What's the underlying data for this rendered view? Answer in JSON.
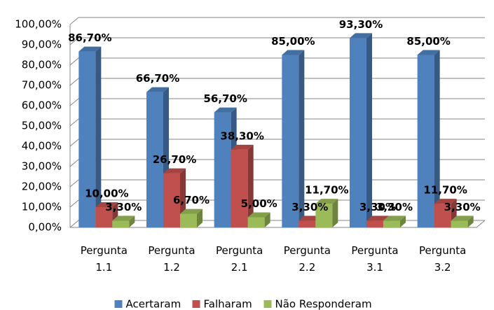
{
  "chart_data": {
    "type": "bar3d",
    "categories": [
      "Pergunta 1.1",
      "Pergunta 1.2",
      "Pergunta 2.1",
      "Pergunta 2.2",
      "Pergunta 3.1",
      "Pergunta 3.2"
    ],
    "series": [
      {
        "name": "Acertaram",
        "color": "#4f81bd",
        "values": [
          86.7,
          66.7,
          56.7,
          85,
          93.3,
          85
        ],
        "value_labels": [
          "86,70%",
          "66,70%",
          "56,70%",
          "85,00%",
          "93,30%",
          "85,00%"
        ]
      },
      {
        "name": "Falharam",
        "color": "#c0504d",
        "values": [
          10,
          26.7,
          38.3,
          3.3,
          3.3,
          11.7
        ],
        "value_labels": [
          "10,00%",
          "26,70%",
          "38,30%",
          "3,30%",
          "3,30%",
          "11,70%"
        ]
      },
      {
        "name": "Não Responderam",
        "color": "#9bbb59",
        "values": [
          3.3,
          6.7,
          5,
          11.7,
          3.3,
          3.3
        ],
        "value_labels": [
          "3,30%",
          "6,70%",
          "5,00%",
          "11,70%",
          "3,30%",
          "3,30%"
        ]
      }
    ],
    "ylim": [
      0,
      100
    ],
    "yticks": [
      {
        "value": 0,
        "label": "0,00%"
      },
      {
        "value": 10,
        "label": "10,00%"
      },
      {
        "value": 20,
        "label": "20,00%"
      },
      {
        "value": 30,
        "label": "30,00%"
      },
      {
        "value": 40,
        "label": "40,00%"
      },
      {
        "value": 50,
        "label": "50,00%"
      },
      {
        "value": 60,
        "label": "60,00%"
      },
      {
        "value": 70,
        "label": "70,00%"
      },
      {
        "value": 80,
        "label": "80,00%"
      },
      {
        "value": 90,
        "label": "90,00%"
      },
      {
        "value": 100,
        "label": "100,00%"
      }
    ],
    "grid": true,
    "legend": "bottom"
  }
}
